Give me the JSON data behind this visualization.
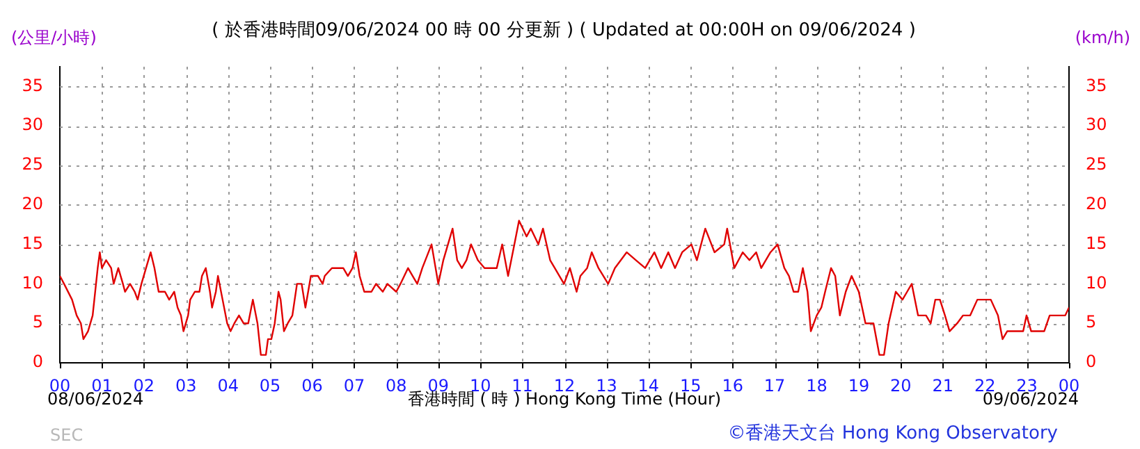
{
  "chart_data": {
    "type": "line",
    "title": "( 於香港時間09/06/2024 00 時 00 分更新 ) ( Updated at 00:00H on 09/06/2024 )",
    "xlabel": "香港時間 ( 時 ) Hong Kong Time (Hour)",
    "ylabel": "(公里/小時)",
    "y2label": "(km/h)",
    "annotations": [
      "08/06/2024",
      "09/06/2024",
      "©香港天文台 Hong Kong Observatory",
      "SEC"
    ],
    "x": [
      0,
      0.1,
      0.29,
      0.4,
      0.5,
      0.56,
      0.67,
      0.78,
      0.84,
      0.9,
      0.95,
      1.0,
      1.1,
      1.22,
      1.28,
      1.39,
      1.5,
      1.55,
      1.67,
      1.78,
      1.85,
      1.94,
      2.05,
      2.16,
      2.25,
      2.35,
      2.5,
      2.6,
      2.72,
      2.8,
      2.88,
      2.94,
      3.05,
      3.1,
      3.21,
      3.32,
      3.38,
      3.47,
      3.57,
      3.62,
      3.71,
      3.76,
      3.87,
      3.98,
      4.06,
      4.15,
      4.26,
      4.37,
      4.48,
      4.59,
      4.7,
      4.78,
      4.9,
      4.95,
      5.03,
      5.11,
      5.2,
      5.25,
      5.33,
      5.42,
      5.53,
      5.64,
      5.75,
      5.84,
      5.97,
      6.14,
      6.25,
      6.3,
      6.47,
      6.74,
      6.85,
      6.96,
      7.04,
      7.13,
      7.24,
      7.41,
      7.52,
      7.68,
      7.79,
      8.0,
      8.1,
      8.28,
      8.39,
      8.5,
      8.62,
      8.84,
      9.0,
      9.12,
      9.34,
      9.45,
      9.56,
      9.67,
      9.78,
      9.94,
      10.1,
      10.39,
      10.52,
      10.66,
      10.81,
      10.92,
      11.1,
      11.2,
      11.38,
      11.49,
      11.66,
      11.77,
      11.99,
      12.13,
      12.29,
      12.38,
      12.54,
      12.65,
      12.81,
      13.04,
      13.2,
      13.48,
      13.7,
      13.92,
      14.14,
      14.3,
      14.47,
      14.63,
      14.8,
      15.02,
      15.15,
      15.35,
      15.57,
      15.8,
      15.87,
      16.04,
      16.24,
      16.4,
      16.56,
      16.68,
      16.9,
      17.07,
      17.23,
      17.34,
      17.45,
      17.56,
      17.67,
      17.78,
      17.86,
      18.0,
      18.11,
      18.2,
      18.34,
      18.44,
      18.55,
      18.69,
      18.83,
      19.0,
      19.16,
      19.35,
      19.49,
      19.6,
      19.71,
      19.88,
      20.04,
      20.15,
      20.26,
      20.41,
      20.6,
      20.71,
      20.82,
      20.93,
      21.05,
      21.16,
      21.34,
      21.48,
      21.65,
      21.82,
      22.14,
      22.31,
      22.42,
      22.53,
      22.91,
      22.99,
      23.1,
      23.41,
      23.54,
      23.91,
      24.0
    ],
    "series": [
      {
        "color": "#e00000",
        "values": [
          11,
          10,
          8,
          6,
          5,
          3,
          4,
          6,
          9,
          12,
          14,
          12,
          13,
          12,
          10,
          12,
          10,
          9,
          10,
          9,
          8,
          10,
          12,
          14,
          12,
          9,
          9,
          8,
          9,
          7,
          6,
          4,
          6,
          8,
          9,
          9,
          11,
          12,
          9,
          7,
          9,
          11,
          8,
          5,
          4,
          5,
          6,
          5,
          5,
          8,
          5,
          1,
          1,
          3,
          3,
          5,
          9,
          8,
          4,
          5,
          6,
          10,
          10,
          7,
          11,
          11,
          10,
          11,
          12,
          12,
          11,
          12,
          14,
          11,
          9,
          9,
          10,
          9,
          10,
          9,
          10,
          12,
          11,
          10,
          12,
          15,
          10,
          13,
          17,
          13,
          12,
          13,
          15,
          13,
          12,
          12,
          15,
          11,
          15,
          18,
          16,
          17,
          15,
          17,
          13,
          12,
          10,
          12,
          9,
          11,
          12,
          14,
          12,
          10,
          12,
          14,
          13,
          12,
          14,
          12,
          14,
          12,
          14,
          15,
          13,
          17,
          14,
          15,
          17,
          12,
          14,
          13,
          14,
          12,
          14,
          15,
          12,
          11,
          9,
          9,
          12,
          9,
          4,
          6,
          7,
          9,
          12,
          11,
          6,
          9,
          11,
          9,
          5,
          5,
          1,
          1,
          5,
          9,
          8,
          9,
          10,
          6,
          6,
          5,
          8,
          8,
          6,
          4,
          5,
          6,
          6,
          8,
          8,
          6,
          3,
          4,
          4,
          6,
          4,
          4,
          6,
          6,
          7
        ]
      }
    ],
    "xlim": [
      0,
      24
    ],
    "xticks": [
      {
        "value": 0,
        "label": "00"
      },
      {
        "value": 1,
        "label": "01"
      },
      {
        "value": 2,
        "label": "02"
      },
      {
        "value": 3,
        "label": "03"
      },
      {
        "value": 4,
        "label": "04"
      },
      {
        "value": 5,
        "label": "05"
      },
      {
        "value": 6,
        "label": "06"
      },
      {
        "value": 7,
        "label": "07"
      },
      {
        "value": 8,
        "label": "08"
      },
      {
        "value": 9,
        "label": "09"
      },
      {
        "value": 10,
        "label": "10"
      },
      {
        "value": 11,
        "label": "11"
      },
      {
        "value": 12,
        "label": "12"
      },
      {
        "value": 13,
        "label": "13"
      },
      {
        "value": 14,
        "label": "14"
      },
      {
        "value": 15,
        "label": "15"
      },
      {
        "value": 16,
        "label": "16"
      },
      {
        "value": 17,
        "label": "17"
      },
      {
        "value": 18,
        "label": "18"
      },
      {
        "value": 19,
        "label": "19"
      },
      {
        "value": 20,
        "label": "20"
      },
      {
        "value": 21,
        "label": "21"
      },
      {
        "value": 22,
        "label": "22"
      },
      {
        "value": 23,
        "label": "23"
      },
      {
        "value": 24,
        "label": "00"
      }
    ],
    "ylim": [
      0,
      37.5
    ],
    "yticks": [
      0,
      5,
      10,
      15,
      20,
      25,
      30,
      35
    ],
    "y2lim": [
      0,
      37.5
    ],
    "y2ticks": [
      0,
      5,
      10,
      15,
      20,
      25,
      30,
      35
    ],
    "grid": true
  }
}
